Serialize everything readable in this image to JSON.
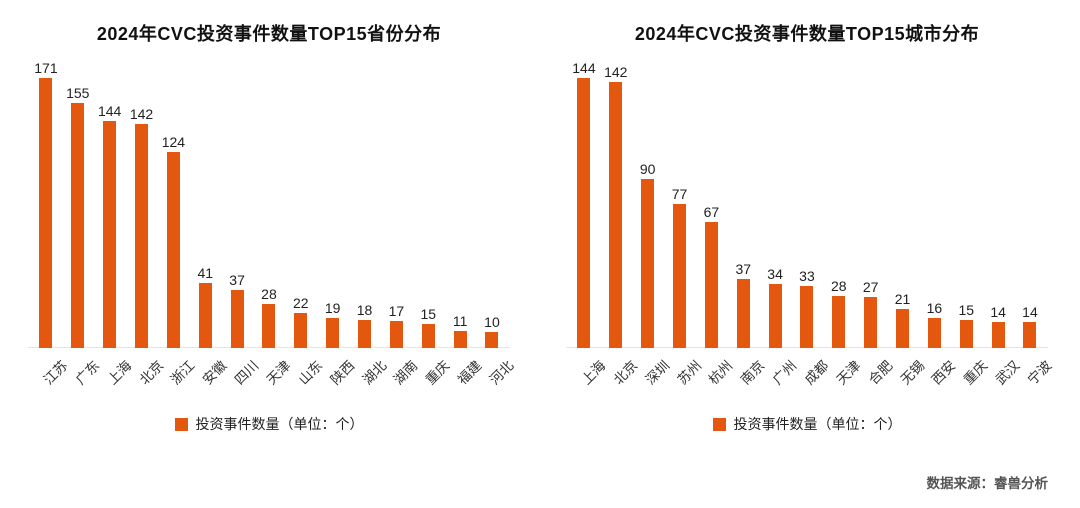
{
  "source": "数据来源：睿兽分析",
  "accent_color": "#E4570F",
  "chart_data": [
    {
      "type": "bar",
      "title": "2024年CVC投资事件数量TOP15省份分布",
      "legend": "投资事件数量（单位：个）",
      "categories": [
        "江苏",
        "广东",
        "上海",
        "北京",
        "浙江",
        "安徽",
        "四川",
        "天津",
        "山东",
        "陕西",
        "湖北",
        "湖南",
        "重庆",
        "福建",
        "河北"
      ],
      "values": [
        171,
        155,
        144,
        142,
        124,
        41,
        37,
        28,
        22,
        19,
        18,
        17,
        15,
        11,
        10
      ],
      "bar_color": "#E4570F",
      "xlabel": "",
      "ylabel": "",
      "ylim": [
        0,
        180
      ],
      "grid": false,
      "legend_position": "bottom",
      "data_labels": true
    },
    {
      "type": "bar",
      "title": "2024年CVC投资事件数量TOP15城市分布",
      "legend": "投资事件数量（单位：个）",
      "categories": [
        "上海",
        "北京",
        "深圳",
        "苏州",
        "杭州",
        "南京",
        "广州",
        "成都",
        "天津",
        "合肥",
        "无锡",
        "西安",
        "重庆",
        "武汉",
        "宁波"
      ],
      "values": [
        144,
        142,
        90,
        77,
        67,
        37,
        34,
        33,
        28,
        27,
        21,
        16,
        15,
        14,
        14
      ],
      "bar_color": "#E4570F",
      "xlabel": "",
      "ylabel": "",
      "ylim": [
        0,
        160
      ],
      "grid": false,
      "legend_position": "bottom",
      "data_labels": true
    }
  ]
}
